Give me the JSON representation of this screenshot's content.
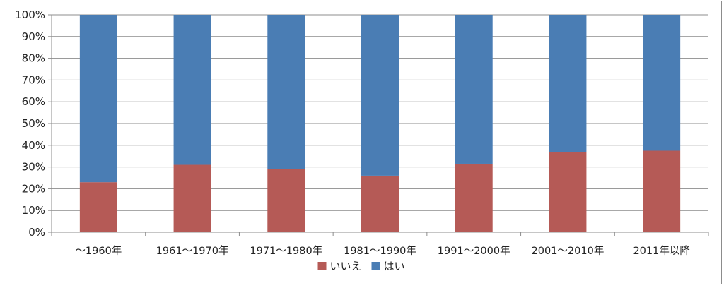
{
  "chart_data": {
    "type": "bar",
    "stacked": true,
    "percent_scale": true,
    "categories": [
      "～1960年",
      "1961～1970年",
      "1971～1980年",
      "1981～1990年",
      "1991～2000年",
      "2001～2010年",
      "2011年以降"
    ],
    "series": [
      {
        "name": "いいえ",
        "color": "#b55a56",
        "values": [
          23,
          31,
          29,
          26,
          31.5,
          37,
          37.5
        ]
      },
      {
        "name": "はい",
        "color": "#4a7db4",
        "values": [
          77,
          69,
          71,
          74,
          68.5,
          63,
          62.5
        ]
      }
    ],
    "yticks": [
      "0%",
      "10%",
      "20%",
      "30%",
      "40%",
      "50%",
      "60%",
      "70%",
      "80%",
      "90%",
      "100%"
    ],
    "ylim": [
      0,
      100
    ],
    "grid": true,
    "legend_position": "bottom"
  }
}
